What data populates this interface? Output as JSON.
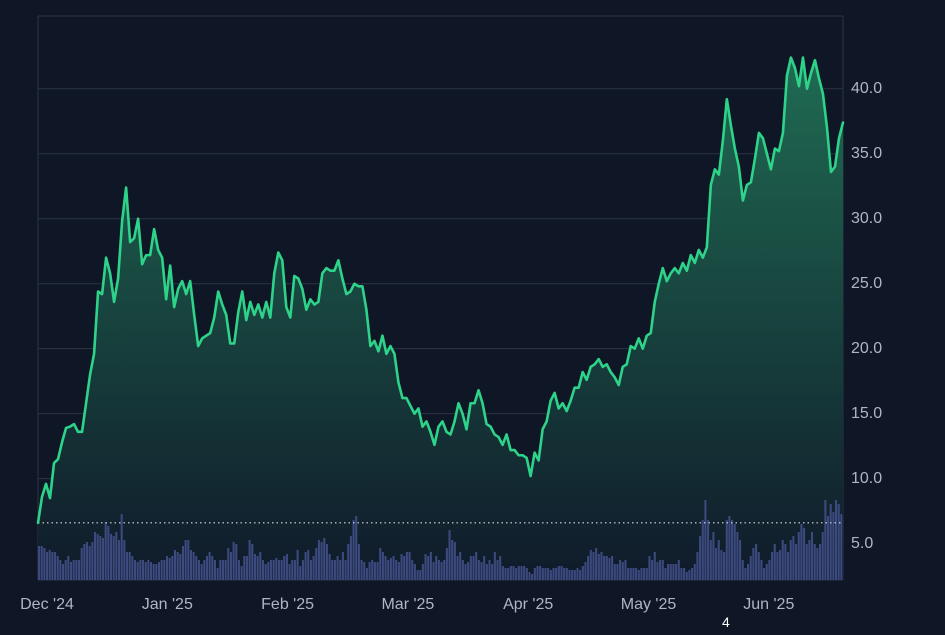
{
  "chart_data": {
    "type": "area",
    "title": "",
    "xlabel": "",
    "ylabel": "",
    "x_ticks": [
      "Dec '24",
      "Jan '25",
      "Feb '25",
      "Mar '25",
      "Apr '25",
      "May '25",
      "Jun '25"
    ],
    "y_ticks": [
      "5.0",
      "10.0",
      "15.0",
      "20.0",
      "25.0",
      "30.0",
      "35.0",
      "40.0"
    ],
    "ylim": [
      2.2,
      45.6
    ],
    "grid": true,
    "legend": "none",
    "baseline_value": 6.6,
    "series": [
      {
        "values": [
          6.6,
          8.6,
          9.6,
          8.5,
          11.2,
          11.5,
          12.8,
          13.9,
          14,
          14.2,
          13.6,
          13.6,
          15.8,
          18,
          19.6,
          24.4,
          24.2,
          27,
          25.8,
          23.6,
          25.4,
          29.8,
          32.4,
          28.2,
          28.5,
          30,
          26.5,
          27.2,
          27.2,
          29.2,
          27.6,
          27,
          23.8,
          26.4,
          23.2,
          24.6,
          25.2,
          24.2,
          25.2,
          22.6,
          20.2,
          20.8,
          21,
          21.2,
          22.4,
          24.4,
          23.4,
          22.6,
          20.4,
          20.4,
          22.8,
          24.4,
          22.2,
          23.6,
          22.6,
          23.4,
          22.4,
          23.6,
          22.4,
          25.8,
          27.4,
          26.8,
          23.2,
          22.4,
          25.6,
          25.4,
          24.6,
          23,
          23.8,
          23.4,
          23.6,
          25.8,
          26.2,
          26,
          26,
          26.8,
          25.4,
          24.2,
          24.4,
          25,
          24.8,
          24.8,
          23,
          20.2,
          20.6,
          19.8,
          21,
          19.6,
          20.2,
          19.6,
          17.4,
          16.2,
          16.2,
          15.6,
          15,
          15.4,
          14,
          14.4,
          13.6,
          12.6,
          14,
          14.4,
          13.6,
          13.4,
          14.4,
          15.8,
          15,
          13.8,
          15.8,
          15.8,
          16.8,
          15.8,
          14.2,
          14,
          13.4,
          13.2,
          12.6,
          13.4,
          12.2,
          12.2,
          11.8,
          11.8,
          11.6,
          10.2,
          12,
          11.4,
          13.8,
          14.4,
          16,
          16.6,
          15.4,
          15.8,
          15.2,
          16,
          17,
          17,
          18.2,
          17.6,
          18.6,
          18.8,
          19.2,
          18.6,
          18.8,
          18.2,
          17.8,
          17.2,
          18.6,
          18.8,
          20.2,
          20,
          20.8,
          20,
          21,
          21.2,
          23.6,
          25,
          26.2,
          25.2,
          25.8,
          26.2,
          25.8,
          26.6,
          26,
          27.2,
          26.6,
          27.6,
          27,
          27.8,
          32.6,
          33.8,
          33.4,
          36,
          39.2,
          37.2,
          35.4,
          34,
          31.4,
          32.6,
          32.8,
          34.6,
          36.6,
          36.2,
          35,
          33.8,
          35.4,
          35.2,
          36.6,
          41,
          42.4,
          41.6,
          40.2,
          42.4,
          40,
          41.2,
          42.2,
          40.8,
          39.6,
          37,
          33.6,
          34,
          36.2,
          37.4
        ]
      }
    ],
    "volume": [
      17,
      17,
      16,
      14,
      15,
      14,
      14,
      12,
      10,
      8,
      10,
      12,
      9,
      10,
      10,
      10,
      16,
      18,
      19,
      17,
      19,
      24,
      23,
      22,
      21,
      29,
      27,
      23,
      22,
      24,
      20,
      33,
      20,
      14,
      14,
      12,
      10,
      9,
      10,
      10,
      9,
      10,
      9,
      8,
      8,
      9,
      10,
      10,
      12,
      11,
      12,
      15,
      14,
      13,
      17,
      20,
      20,
      15,
      14,
      12,
      10,
      8,
      10,
      12,
      14,
      12,
      10,
      6,
      10,
      10,
      10,
      16,
      14,
      19,
      18,
      10,
      7,
      12,
      12,
      20,
      18,
      13,
      12,
      14,
      10,
      8,
      9,
      10,
      10,
      11,
      10,
      10,
      12,
      13,
      8,
      10,
      10,
      15,
      7,
      10,
      14,
      15,
      10,
      12,
      16,
      20,
      19,
      21,
      18,
      13,
      10,
      10,
      12,
      10,
      14,
      10,
      18,
      22,
      30,
      32,
      18,
      10,
      9,
      6,
      9,
      10,
      9,
      9,
      16,
      14,
      12,
      10,
      11,
      12,
      10,
      9,
      13,
      12,
      14,
      14,
      10,
      8,
      5,
      5,
      8,
      13,
      12,
      14,
      9,
      12,
      10,
      9,
      10,
      16,
      25,
      20,
      19,
      12,
      14,
      10,
      8,
      9,
      12,
      12,
      14,
      10,
      9,
      12,
      8,
      10,
      8,
      14,
      10,
      12,
      7,
      6,
      6,
      7,
      7,
      6,
      7,
      7,
      7,
      6,
      4,
      3,
      6,
      7,
      7,
      6,
      6,
      6,
      5,
      6,
      6,
      7,
      7,
      6,
      6,
      5,
      5,
      5,
      6,
      5,
      7,
      9,
      12,
      15,
      14,
      16,
      13,
      14,
      12,
      12,
      11,
      12,
      8,
      8,
      10,
      9,
      10,
      6,
      6,
      6,
      6,
      5,
      6,
      6,
      6,
      12,
      10,
      14,
      9,
      10,
      10,
      6,
      8,
      8,
      8,
      8,
      10,
      6,
      6,
      4,
      5,
      6,
      8,
      14,
      22,
      30,
      40,
      30,
      20,
      24,
      16,
      20,
      15,
      14,
      30,
      32,
      30,
      28,
      24,
      20,
      10,
      6,
      8,
      12,
      16,
      18,
      14,
      10,
      6,
      8,
      10,
      14,
      18,
      14,
      15,
      20,
      18,
      14,
      20,
      22,
      18,
      24,
      28,
      26,
      18,
      20,
      24,
      18,
      16,
      18,
      24,
      40,
      32,
      38,
      34,
      40,
      38,
      33
    ]
  },
  "annotation_text": "4",
  "colors": {
    "background": "#0f1626",
    "line": "#2ed38a",
    "area_top": "#1f6b52",
    "area_bottom": "#101a2a",
    "grid": "#2c3547",
    "volume": "#3c4a80",
    "text": "#aeb6c6",
    "baseline": "#d8dce6"
  }
}
